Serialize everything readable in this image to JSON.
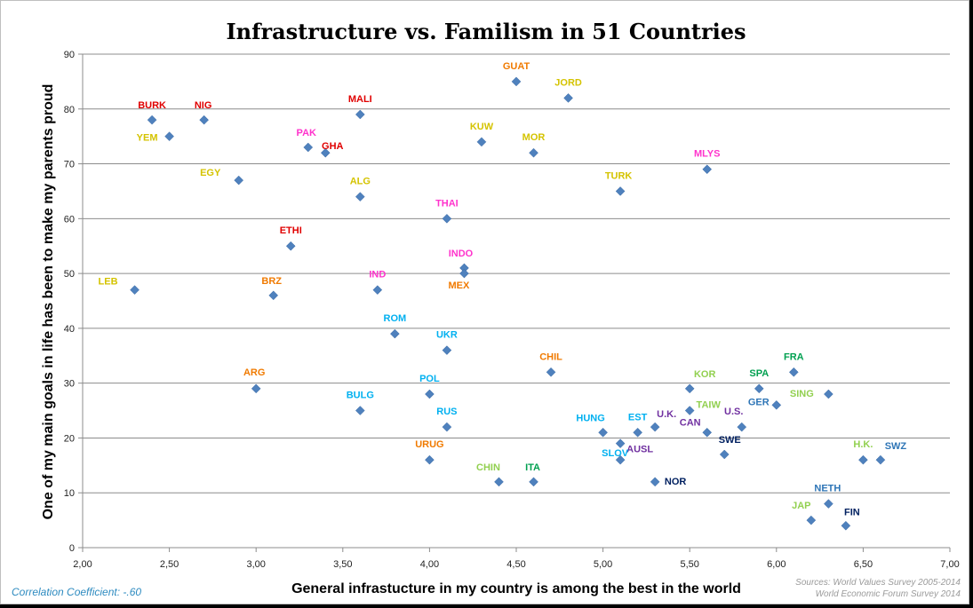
{
  "chart_data": {
    "type": "scatter",
    "title": "Infrastructure  vs. Familism in 51 Countries",
    "xlabel": "General infrastucture in my country is among the best in the world",
    "ylabel": "One of my main goals in life has been to make my parents proud",
    "xlim": [
      2.0,
      7.0
    ],
    "ylim": [
      0,
      90
    ],
    "x_ticks": [
      "2,00",
      "2,50",
      "3,00",
      "3,50",
      "4,00",
      "4,50",
      "5,00",
      "5,50",
      "6,00",
      "6,50",
      "7,00"
    ],
    "y_ticks": [
      "0",
      "10",
      "20",
      "30",
      "40",
      "50",
      "60",
      "70",
      "80",
      "90"
    ],
    "grid": "horizontal",
    "marker_color": "#4f81bd",
    "points": [
      {
        "label": "BURK",
        "x": 2.4,
        "y": 78,
        "color": "#e00000"
      },
      {
        "label": "NIG",
        "x": 2.7,
        "y": 78,
        "color": "#e00000"
      },
      {
        "label": "YEM",
        "x": 2.5,
        "y": 75,
        "color": "#d4c300"
      },
      {
        "label": "EGY",
        "x": 2.9,
        "y": 67,
        "color": "#d4c300"
      },
      {
        "label": "LEB",
        "x": 2.3,
        "y": 47,
        "color": "#d4c300"
      },
      {
        "label": "ETHI",
        "x": 3.2,
        "y": 55,
        "color": "#e00000"
      },
      {
        "label": "BRZ",
        "x": 3.1,
        "y": 46,
        "color": "#f07a00"
      },
      {
        "label": "ARG",
        "x": 3.0,
        "y": 29,
        "color": "#f07a00"
      },
      {
        "label": "PAK",
        "x": 3.3,
        "y": 73,
        "color": "#ff33cc"
      },
      {
        "label": "GHA",
        "x": 3.4,
        "y": 72,
        "color": "#e00000"
      },
      {
        "label": "MALI",
        "x": 3.6,
        "y": 79,
        "color": "#e00000"
      },
      {
        "label": "ALG",
        "x": 3.6,
        "y": 64,
        "color": "#d4c300"
      },
      {
        "label": "IND",
        "x": 3.7,
        "y": 47,
        "color": "#ff33cc"
      },
      {
        "label": "ROM",
        "x": 3.8,
        "y": 39,
        "color": "#00b0f0"
      },
      {
        "label": "BULG",
        "x": 3.6,
        "y": 25,
        "color": "#00b0f0"
      },
      {
        "label": "POL",
        "x": 4.0,
        "y": 28,
        "color": "#00b0f0"
      },
      {
        "label": "UKR",
        "x": 4.1,
        "y": 36,
        "color": "#00b0f0"
      },
      {
        "label": "RUS",
        "x": 4.1,
        "y": 22,
        "color": "#00b0f0"
      },
      {
        "label": "URUG",
        "x": 4.0,
        "y": 16,
        "color": "#f07a00"
      },
      {
        "label": "THAI",
        "x": 4.1,
        "y": 60,
        "color": "#ff33cc"
      },
      {
        "label": "INDO",
        "x": 4.2,
        "y": 51,
        "color": "#ff33cc"
      },
      {
        "label": "MEX",
        "x": 4.2,
        "y": 50,
        "color": "#f07a00"
      },
      {
        "label": "KUW",
        "x": 4.3,
        "y": 74,
        "color": "#d4c300"
      },
      {
        "label": "GUAT",
        "x": 4.5,
        "y": 85,
        "color": "#f07a00"
      },
      {
        "label": "MOR",
        "x": 4.6,
        "y": 72,
        "color": "#d4c300"
      },
      {
        "label": "JORD",
        "x": 4.8,
        "y": 82,
        "color": "#d4c300"
      },
      {
        "label": "CHIL",
        "x": 4.7,
        "y": 32,
        "color": "#f07a00"
      },
      {
        "label": "CHIN",
        "x": 4.4,
        "y": 12,
        "color": "#92d050"
      },
      {
        "label": "ITA",
        "x": 4.6,
        "y": 12,
        "color": "#00a050"
      },
      {
        "label": "TURK",
        "x": 5.1,
        "y": 65,
        "color": "#d4c300"
      },
      {
        "label": "MLYS",
        "x": 5.6,
        "y": 69,
        "color": "#ff33cc"
      },
      {
        "label": "HUNG",
        "x": 5.0,
        "y": 21,
        "color": "#00b0f0"
      },
      {
        "label": "EST",
        "x": 5.2,
        "y": 21,
        "color": "#00b0f0"
      },
      {
        "label": "AUSL",
        "x": 5.1,
        "y": 19,
        "color": "#7030a0"
      },
      {
        "label": "SLOV",
        "x": 5.1,
        "y": 16,
        "color": "#00b0f0"
      },
      {
        "label": "U.K.",
        "x": 5.3,
        "y": 22,
        "color": "#7030a0"
      },
      {
        "label": "NOR",
        "x": 5.3,
        "y": 12,
        "color": "#002060"
      },
      {
        "label": "KOR",
        "x": 5.5,
        "y": 29,
        "color": "#92d050"
      },
      {
        "label": "TAIW",
        "x": 5.5,
        "y": 25,
        "color": "#92d050"
      },
      {
        "label": "CAN",
        "x": 5.6,
        "y": 21,
        "color": "#7030a0"
      },
      {
        "label": "SWE",
        "x": 5.7,
        "y": 17,
        "color": "#002060"
      },
      {
        "label": "U.S.",
        "x": 5.8,
        "y": 22,
        "color": "#7030a0"
      },
      {
        "label": "SPA",
        "x": 5.9,
        "y": 29,
        "color": "#00a050"
      },
      {
        "label": "GER",
        "x": 6.0,
        "y": 26,
        "color": "#2e75b6"
      },
      {
        "label": "FRA",
        "x": 6.1,
        "y": 32,
        "color": "#00a050"
      },
      {
        "label": "SING",
        "x": 6.3,
        "y": 28,
        "color": "#92d050"
      },
      {
        "label": "NETH",
        "x": 6.3,
        "y": 8,
        "color": "#2e75b6"
      },
      {
        "label": "JAP",
        "x": 6.2,
        "y": 5,
        "color": "#92d050"
      },
      {
        "label": "FIN",
        "x": 6.4,
        "y": 4,
        "color": "#002060"
      },
      {
        "label": "H.K.",
        "x": 6.5,
        "y": 16,
        "color": "#92d050"
      },
      {
        "label": "SWZ",
        "x": 6.6,
        "y": 16,
        "color": "#2e75b6"
      }
    ]
  },
  "footer": {
    "correlation": "Correlation Coefficient: -.60",
    "sources_line1": "Sources: World Values Survey 2005-2014",
    "sources_line2": "World Economic Forum Survey 2014"
  }
}
